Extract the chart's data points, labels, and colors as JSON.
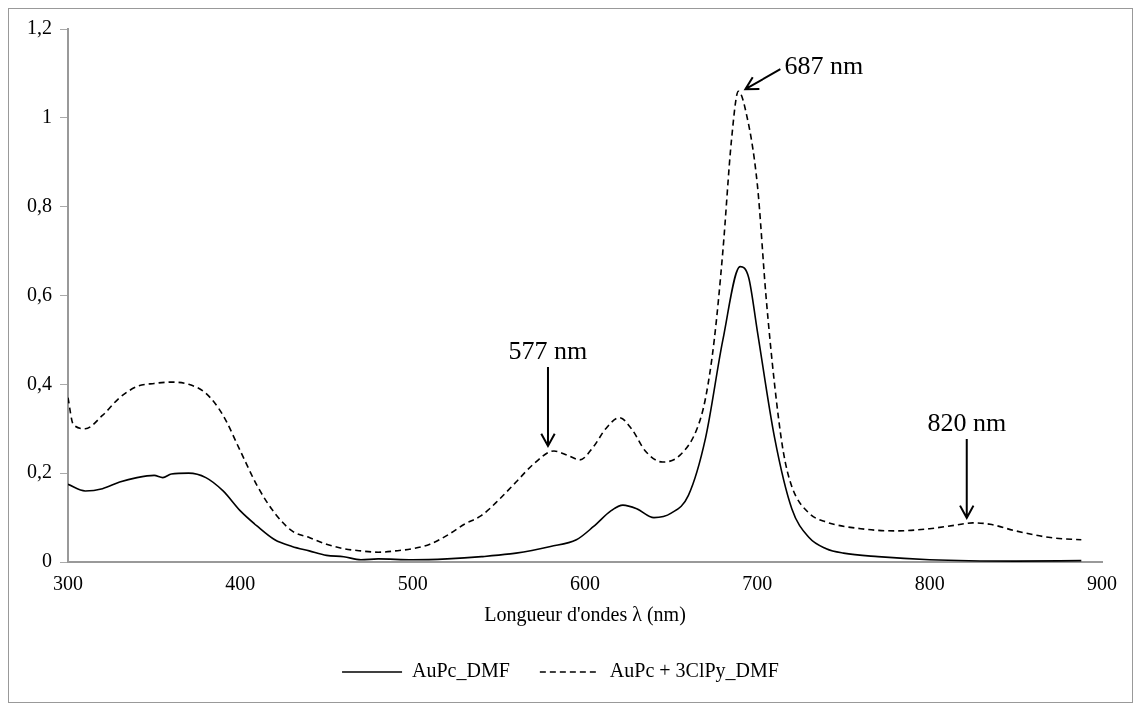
{
  "chart_data": {
    "type": "line",
    "xlabel": "Longueur d'ondes λ (nm)",
    "xlim": [
      300,
      900
    ],
    "xticks": [
      300,
      400,
      500,
      600,
      700,
      800,
      900
    ],
    "ylim": [
      0,
      1.2
    ],
    "yticks": [
      0,
      {
        "value": 0.2,
        "label": "0,2"
      },
      {
        "value": 0.4,
        "label": "0,4"
      },
      {
        "value": 0.6,
        "label": "0,6"
      },
      {
        "value": 0.8,
        "label": "0,8"
      },
      1,
      {
        "value": 1.2,
        "label": "1,2"
      }
    ],
    "grid": false,
    "legend": "bottom",
    "marker": "none",
    "series": [
      {
        "name": "AuPc_DMF",
        "color": "#000000",
        "line_style": "solid",
        "x": [
          300,
          310,
          320,
          330,
          340,
          350,
          355,
          360,
          370,
          380,
          390,
          400,
          410,
          420,
          430,
          440,
          450,
          460,
          470,
          480,
          500,
          520,
          540,
          560,
          580,
          595,
          605,
          615,
          622,
          630,
          640,
          650,
          660,
          670,
          680,
          690,
          695,
          700,
          710,
          720,
          730,
          740,
          750,
          770,
          800,
          850,
          888
        ],
        "values": [
          0.175,
          0.16,
          0.165,
          0.18,
          0.19,
          0.195,
          0.19,
          0.198,
          0.2,
          0.19,
          0.16,
          0.115,
          0.08,
          0.05,
          0.035,
          0.025,
          0.015,
          0.012,
          0.005,
          0.007,
          0.005,
          0.007,
          0.012,
          0.02,
          0.035,
          0.05,
          0.08,
          0.115,
          0.128,
          0.12,
          0.1,
          0.11,
          0.15,
          0.28,
          0.5,
          0.665,
          0.64,
          0.52,
          0.28,
          0.12,
          0.055,
          0.03,
          0.02,
          0.012,
          0.005,
          0.002,
          0.003
        ]
      },
      {
        "name": "AuPc + 3ClPy_DMF",
        "color": "#000000",
        "line_style": "dashed",
        "x": [
          300,
          303,
          310,
          320,
          330,
          340,
          350,
          360,
          370,
          380,
          390,
          400,
          410,
          420,
          430,
          440,
          450,
          460,
          470,
          480,
          490,
          500,
          510,
          520,
          530,
          540,
          550,
          560,
          570,
          582,
          590,
          597,
          605,
          612,
          620,
          627,
          635,
          645,
          655,
          665,
          670,
          675,
          680,
          685,
          689,
          693,
          700,
          705,
          710,
          715,
          720,
          730,
          740,
          760,
          780,
          800,
          815,
          825,
          835,
          850,
          870,
          888
        ],
        "values": [
          0.37,
          0.31,
          0.3,
          0.33,
          0.37,
          0.395,
          0.402,
          0.405,
          0.4,
          0.38,
          0.33,
          0.25,
          0.17,
          0.11,
          0.07,
          0.055,
          0.04,
          0.03,
          0.025,
          0.022,
          0.025,
          0.03,
          0.04,
          0.06,
          0.085,
          0.105,
          0.14,
          0.18,
          0.22,
          0.25,
          0.24,
          0.23,
          0.26,
          0.3,
          0.325,
          0.3,
          0.25,
          0.225,
          0.24,
          0.3,
          0.37,
          0.5,
          0.7,
          0.95,
          1.06,
          1.02,
          0.85,
          0.6,
          0.4,
          0.25,
          0.17,
          0.11,
          0.09,
          0.075,
          0.07,
          0.075,
          0.083,
          0.088,
          0.085,
          0.07,
          0.055,
          0.05
        ]
      }
    ],
    "annotations": [
      {
        "text": "577 nm",
        "x": 582,
        "y": 0.25
      },
      {
        "text": "687 nm",
        "x": 689,
        "y": 1.06
      },
      {
        "text": "820 nm",
        "x": 825,
        "y": 0.088
      }
    ]
  }
}
